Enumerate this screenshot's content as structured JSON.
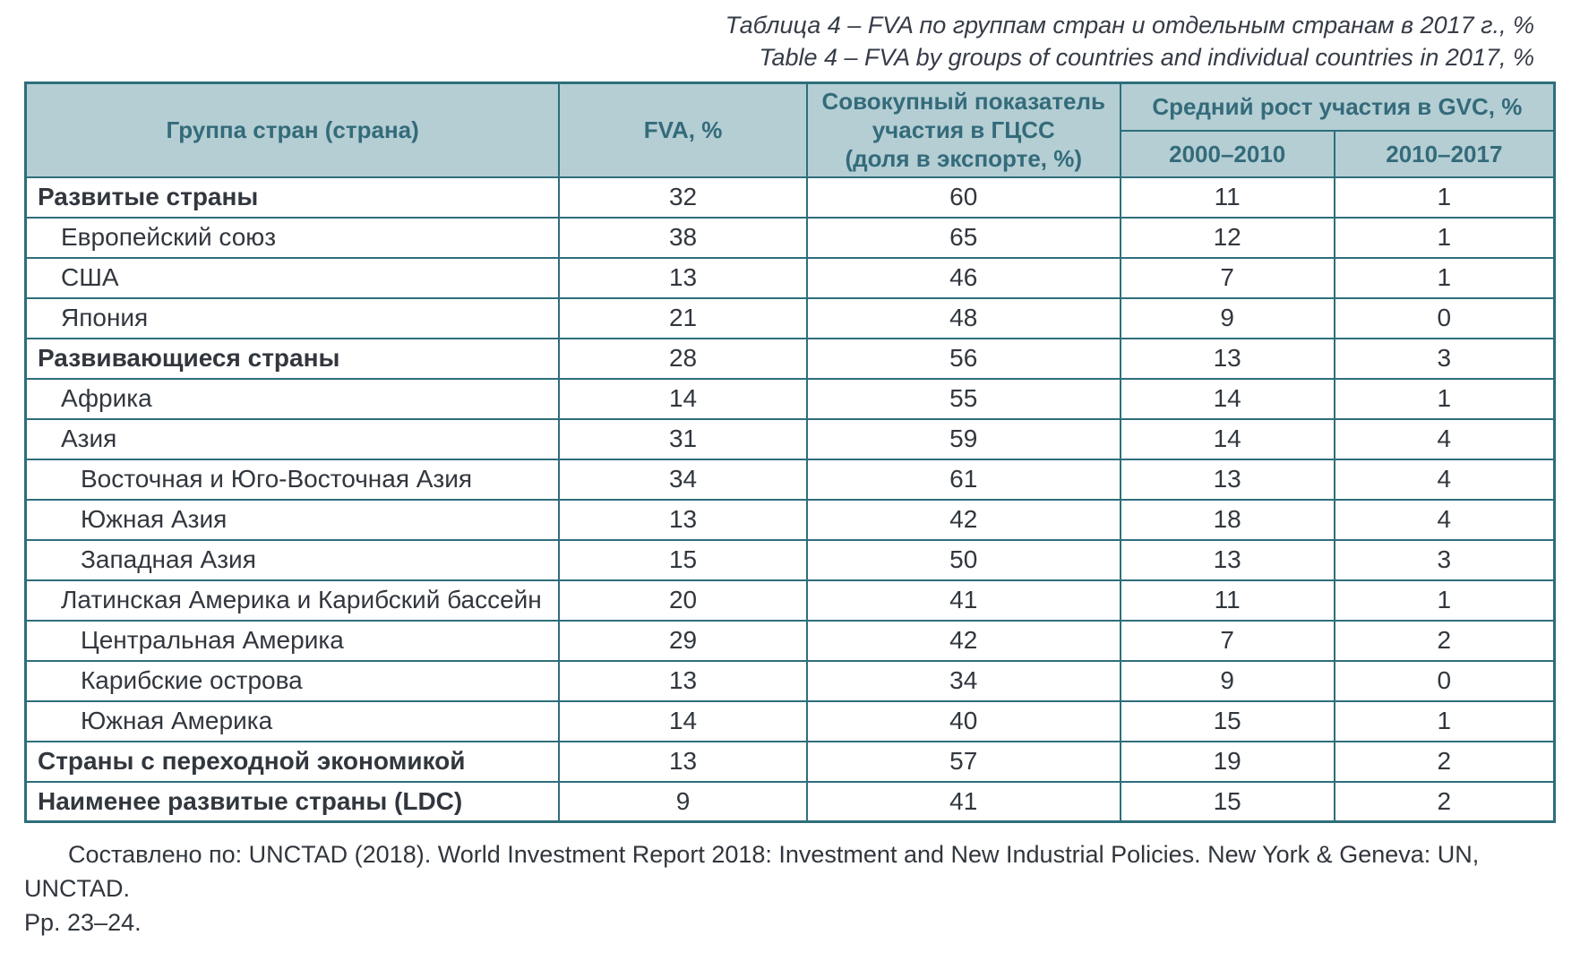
{
  "caption": {
    "ru": "Таблица 4 – FVA по группам стран и отдельным странам в 2017 г., %",
    "en": "Table 4 – FVA by groups of countries and individual countries in 2017, %"
  },
  "table": {
    "headers": {
      "country_group": "Группа стран (страна)",
      "fva": "FVA, %",
      "gvc_participation_lines": [
        "Совокупный показатель",
        "участия в ГЦСС",
        "(доля в экспорте, %)"
      ],
      "avg_growth": "Средний рост участия в GVC, %",
      "period1": "2000–2010",
      "period2": "2010–2017"
    },
    "rows": [
      {
        "label": "Развитые страны",
        "level": 0,
        "group": true,
        "fva": 32,
        "participation": 60,
        "growth_2000_2010": 11,
        "growth_2010_2017": 1
      },
      {
        "label": "Европейский союз",
        "level": 1,
        "group": false,
        "fva": 38,
        "participation": 65,
        "growth_2000_2010": 12,
        "growth_2010_2017": 1
      },
      {
        "label": "США",
        "level": 1,
        "group": false,
        "fva": 13,
        "participation": 46,
        "growth_2000_2010": 7,
        "growth_2010_2017": 1
      },
      {
        "label": "Япония",
        "level": 1,
        "group": false,
        "fva": 21,
        "participation": 48,
        "growth_2000_2010": 9,
        "growth_2010_2017": 0
      },
      {
        "label": "Развивающиеся страны",
        "level": 0,
        "group": true,
        "fva": 28,
        "participation": 56,
        "growth_2000_2010": 13,
        "growth_2010_2017": 3
      },
      {
        "label": "Африка",
        "level": 1,
        "group": false,
        "fva": 14,
        "participation": 55,
        "growth_2000_2010": 14,
        "growth_2010_2017": 1
      },
      {
        "label": "Азия",
        "level": 1,
        "group": false,
        "fva": 31,
        "participation": 59,
        "growth_2000_2010": 14,
        "growth_2010_2017": 4
      },
      {
        "label": "Восточная и Юго-Восточная Азия",
        "level": 2,
        "group": false,
        "fva": 34,
        "participation": 61,
        "growth_2000_2010": 13,
        "growth_2010_2017": 4
      },
      {
        "label": "Южная Азия",
        "level": 2,
        "group": false,
        "fva": 13,
        "participation": 42,
        "growth_2000_2010": 18,
        "growth_2010_2017": 4
      },
      {
        "label": "Западная Азия",
        "level": 2,
        "group": false,
        "fva": 15,
        "participation": 50,
        "growth_2000_2010": 13,
        "growth_2010_2017": 3
      },
      {
        "label": "Латинская Америка и Карибский бассейн",
        "level": 1,
        "group": false,
        "fva": 20,
        "participation": 41,
        "growth_2000_2010": 11,
        "growth_2010_2017": 1
      },
      {
        "label": "Центральная Америка",
        "level": 2,
        "group": false,
        "fva": 29,
        "participation": 42,
        "growth_2000_2010": 7,
        "growth_2010_2017": 2
      },
      {
        "label": "Карибские острова",
        "level": 2,
        "group": false,
        "fva": 13,
        "participation": 34,
        "growth_2000_2010": 9,
        "growth_2010_2017": 0
      },
      {
        "label": "Южная Америка",
        "level": 2,
        "group": false,
        "fva": 14,
        "participation": 40,
        "growth_2000_2010": 15,
        "growth_2010_2017": 1
      },
      {
        "label": "Страны с переходной экономикой",
        "level": 0,
        "group": true,
        "fva": 13,
        "participation": 57,
        "growth_2000_2010": 19,
        "growth_2010_2017": 2
      },
      {
        "label": "Наименее развитые страны (LDC)",
        "level": 0,
        "group": true,
        "fva": 9,
        "participation": 41,
        "growth_2000_2010": 15,
        "growth_2010_2017": 2
      }
    ]
  },
  "source": {
    "line1": "Составлено по: UNCTAD (2018). World Investment Report 2018: Investment and New Industrial Policies. New York & Geneva: UN, UNCTAD.",
    "line2": "Pp. 23–24."
  },
  "colors": {
    "header_bg": "#b4ced4",
    "border": "#2e6e7c",
    "header_text": "#346b7a",
    "body_text": "#32373e"
  }
}
